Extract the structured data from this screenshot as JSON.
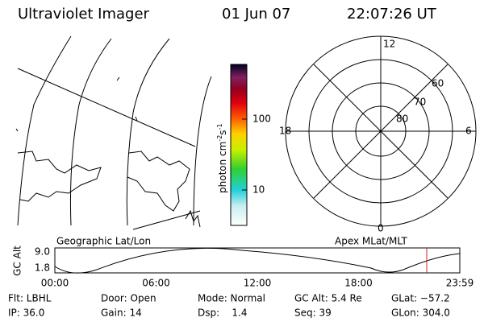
{
  "header": {
    "instrument": "Ultraviolet Imager",
    "date": "01 Jun 07",
    "time": "22:07:26 UT"
  },
  "colorbar": {
    "label": [
      "photon cm",
      "-2",
      "s",
      "-1"
    ],
    "ticks": [
      "100",
      "10"
    ]
  },
  "polar": {
    "mlt_labels": [
      "12",
      "18",
      "6",
      "0"
    ],
    "mlat_labels": [
      "60",
      "70",
      "80"
    ]
  },
  "panels": {
    "left_title": "Geographic Lat/Lon",
    "right_title": "Apex MLat/MLT"
  },
  "altitude_plot": {
    "y_label": "GC Alt",
    "y_ticks": [
      "9.0",
      "1.8"
    ],
    "x_ticks": [
      "00:00",
      "06:00",
      "12:00",
      "18:00",
      "23:59"
    ]
  },
  "footer": {
    "rows": [
      [
        "Flt: LBHL",
        "Door: Open",
        "Mode: Normal",
        "GC Alt: 5.4 Re",
        "GLat: −57.2"
      ],
      [
        "IP: 36.0",
        "Gain: 14",
        "Dsp:    1.4",
        "Seq: 39",
        "GLon: 304.0"
      ]
    ]
  }
}
